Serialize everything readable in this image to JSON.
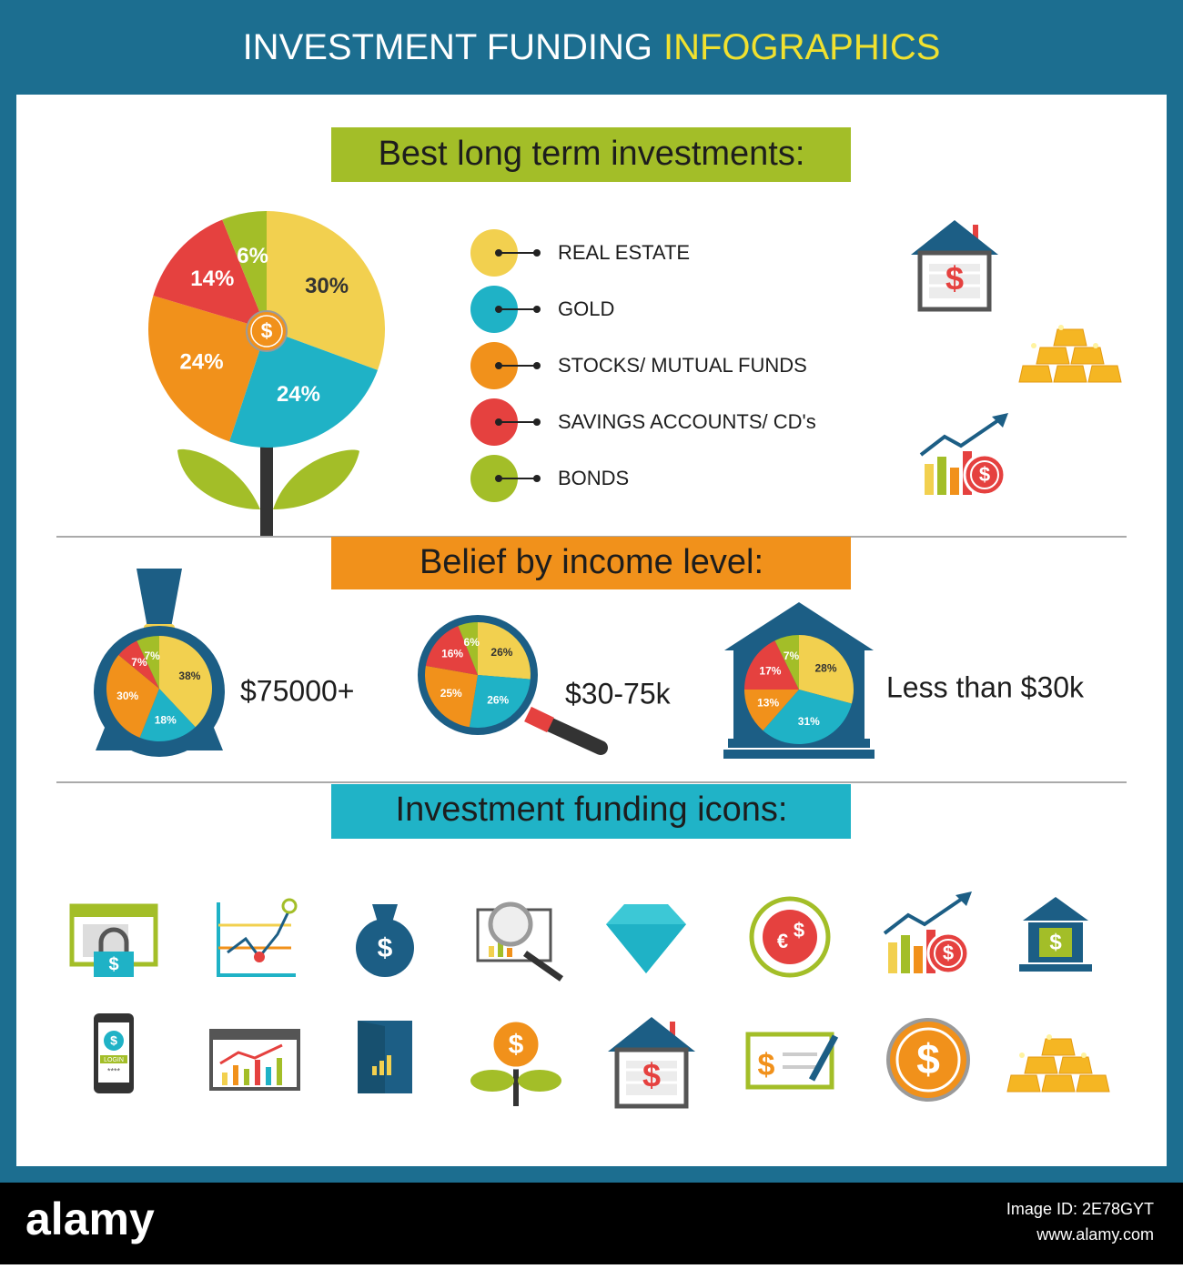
{
  "header": {
    "title_main": "INVESTMENT FUNDING",
    "title_highlight": "INFOGRAPHICS"
  },
  "sections": [
    {
      "title": "Best long term investments:"
    },
    {
      "title": "Belief by income level:"
    },
    {
      "title": "Investment funding icons:"
    }
  ],
  "investment_pie": {
    "type": "pie",
    "values": [
      30,
      24,
      24,
      14,
      6
    ],
    "value_labels": [
      "30%",
      "24%",
      "24%",
      "14%",
      "6%"
    ],
    "colors": [
      "#f2d04f",
      "#1fb2c6",
      "#f1911b",
      "#e5413f",
      "#a3be28"
    ]
  },
  "legend": {
    "items": [
      "REAL ESTATE",
      "GOLD",
      "STOCKS/ MUTUAL FUNDS",
      "SAVINGS ACCOUNTS/ CD's",
      "BONDS"
    ]
  },
  "income_pies": [
    {
      "label": "$75000+",
      "values": [
        38,
        18,
        30,
        7,
        7
      ],
      "value_labels": [
        "38%",
        "18%",
        "30%",
        "7%",
        "7%"
      ]
    },
    {
      "label": "$30-75k",
      "values": [
        26,
        26,
        25,
        16,
        6
      ],
      "value_labels": [
        "26%",
        "26%",
        "25%",
        "16%",
        "6%"
      ]
    },
    {
      "label": "Less than $30k",
      "values": [
        28,
        31,
        13,
        17,
        7
      ],
      "value_labels": [
        "28%",
        "31%",
        "13%",
        "17%",
        "7%"
      ]
    }
  ],
  "icons": {
    "dollar": "$",
    "euro": "€",
    "login": "LOGIN",
    "pin": "****"
  },
  "watermark": {
    "brand": "alamy",
    "image_id": "Image ID: 2E78GYT",
    "url": "www.alamy.com"
  }
}
